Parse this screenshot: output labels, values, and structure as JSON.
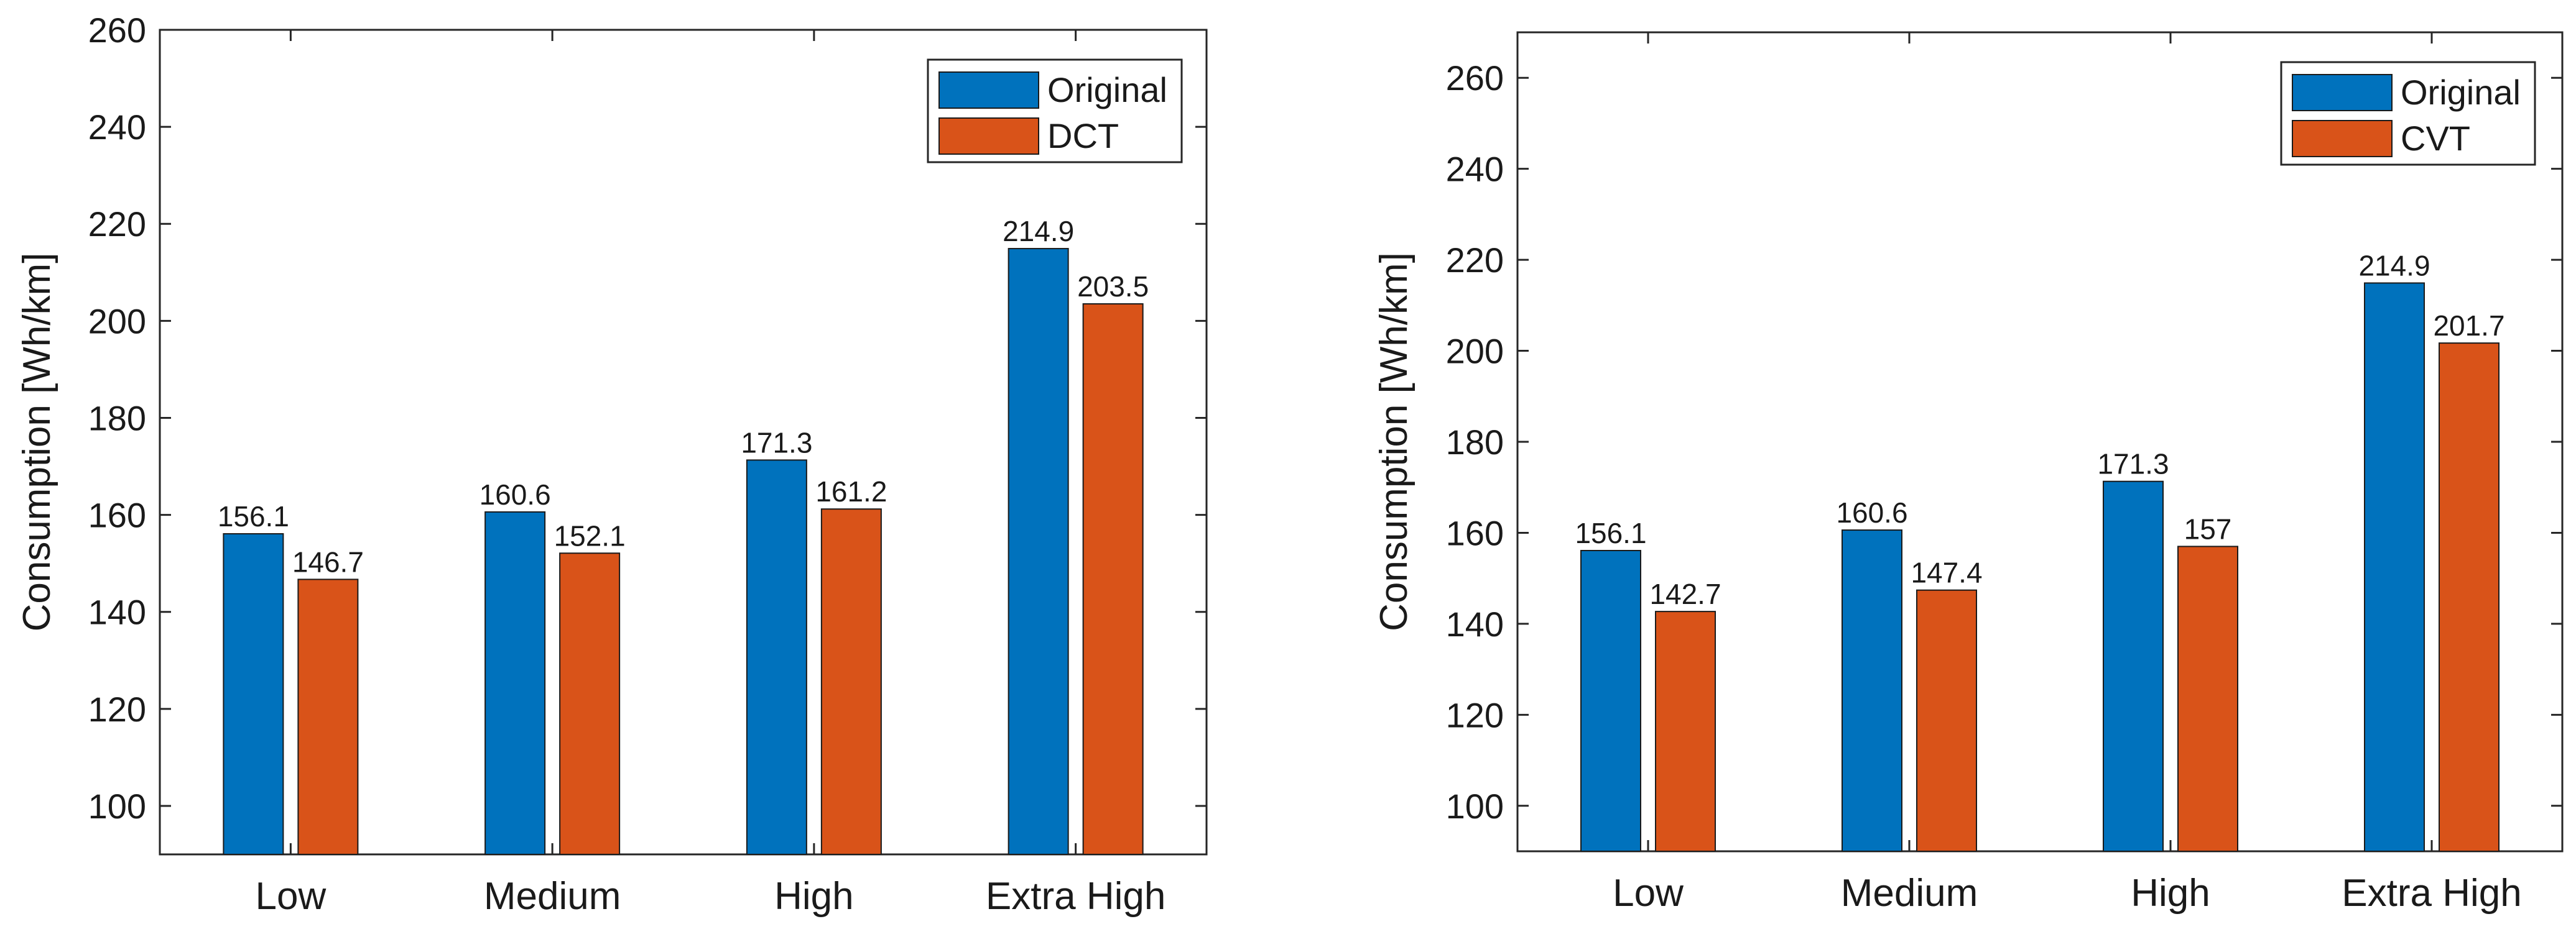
{
  "colors": {
    "original": "#0072bd",
    "alt": "#d95319",
    "axis": "#262626",
    "bar_edge": "#1a1a1a"
  },
  "chart_data": [
    {
      "type": "bar",
      "title": "",
      "xlabel": "",
      "ylabel": "Consumption [Wh/km]",
      "ylim": [
        90,
        260
      ],
      "yticks": [
        100,
        120,
        140,
        160,
        180,
        200,
        220,
        240,
        260
      ],
      "categories": [
        "Low",
        "Medium",
        "High",
        "Extra High"
      ],
      "series": [
        {
          "name": "Original",
          "values": [
            156.1,
            160.6,
            171.3,
            214.9
          ],
          "labels": [
            "156.1",
            "160.6",
            "171.3",
            "214.9"
          ]
        },
        {
          "name": "DCT",
          "values": [
            146.7,
            152.1,
            161.2,
            203.5
          ],
          "labels": [
            "146.7",
            "152.1",
            "161.2",
            "203.5"
          ]
        }
      ],
      "legend": "top-right"
    },
    {
      "type": "bar",
      "title": "",
      "xlabel": "",
      "ylabel": "Consumption [Wh/km]",
      "ylim": [
        90,
        270
      ],
      "yticks": [
        100,
        120,
        140,
        160,
        180,
        200,
        220,
        240,
        260
      ],
      "categories": [
        "Low",
        "Medium",
        "High",
        "Extra High"
      ],
      "series": [
        {
          "name": "Original",
          "values": [
            156.1,
            160.6,
            171.3,
            214.9
          ],
          "labels": [
            "156.1",
            "160.6",
            "171.3",
            "214.9"
          ]
        },
        {
          "name": "CVT",
          "values": [
            142.7,
            147.4,
            157,
            201.7
          ],
          "labels": [
            "142.7",
            "147.4",
            "157",
            "201.7"
          ]
        }
      ],
      "legend": "top-right"
    }
  ]
}
